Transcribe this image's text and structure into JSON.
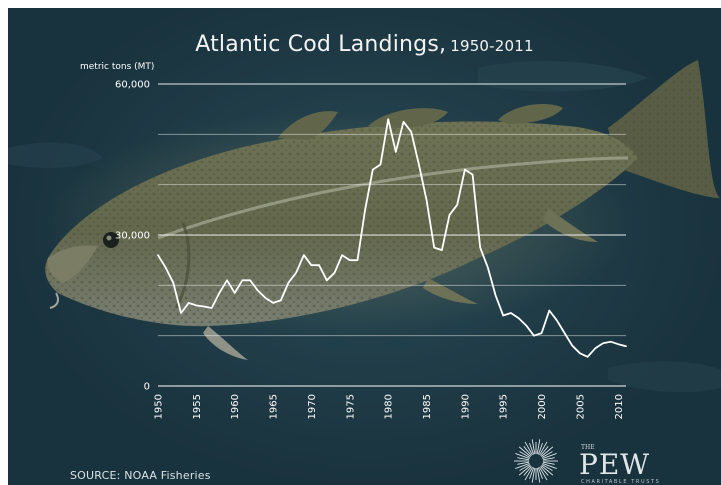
{
  "chart_data": {
    "type": "line",
    "title": "Atlantic Cod Landings,",
    "title_years": "1950-2011",
    "ylabel": "metric tons (MT)",
    "ylim": [
      0,
      60000
    ],
    "y_ticks": [
      {
        "value": 0,
        "label": "0"
      },
      {
        "value": 30000,
        "label": "30,000"
      },
      {
        "value": 60000,
        "label": "60,000"
      }
    ],
    "gridlines": [
      10000,
      20000,
      30000,
      40000,
      50000,
      60000
    ],
    "xlim": [
      1950,
      2011
    ],
    "x_ticks": [
      {
        "value": 1950,
        "label": "1950"
      },
      {
        "value": 1955,
        "label": "1955"
      },
      {
        "value": 1960,
        "label": "1960"
      },
      {
        "value": 1965,
        "label": "1965"
      },
      {
        "value": 1970,
        "label": "1970"
      },
      {
        "value": 1975,
        "label": "1975"
      },
      {
        "value": 1980,
        "label": "1980"
      },
      {
        "value": 1985,
        "label": "1985"
      },
      {
        "value": 1990,
        "label": "1990"
      },
      {
        "value": 1995,
        "label": "1995"
      },
      {
        "value": 2000,
        "label": "2000"
      },
      {
        "value": 2005,
        "label": "2005"
      },
      {
        "value": 2010,
        "label": "2010"
      }
    ],
    "grid": true,
    "series": [
      {
        "color": "#ffffff",
        "x": [
          1950,
          1951,
          1952,
          1953,
          1954,
          1955,
          1956,
          1957,
          1958,
          1959,
          1960,
          1961,
          1962,
          1963,
          1964,
          1965,
          1966,
          1967,
          1968,
          1969,
          1970,
          1971,
          1972,
          1973,
          1974,
          1975,
          1976,
          1977,
          1978,
          1979,
          1980,
          1981,
          1982,
          1983,
          1984,
          1985,
          1986,
          1987,
          1988,
          1989,
          1990,
          1991,
          1992,
          1993,
          1994,
          1995,
          1996,
          1997,
          1998,
          1999,
          2000,
          2001,
          2002,
          2003,
          2004,
          2005,
          2006,
          2007,
          2008,
          2009,
          2010,
          2011
        ],
        "values": [
          26000,
          23500,
          20500,
          14500,
          16500,
          16000,
          15800,
          15500,
          18500,
          21000,
          18500,
          21000,
          21000,
          19000,
          17500,
          16500,
          17000,
          20500,
          22500,
          26000,
          24000,
          24000,
          21000,
          22500,
          26000,
          25000,
          25000,
          35000,
          43000,
          44000,
          53000,
          46500,
          52500,
          50500,
          44000,
          37000,
          27500,
          27000,
          34000,
          36000,
          43000,
          42000,
          27500,
          23500,
          18000,
          14000,
          14500,
          13500,
          12000,
          10000,
          10500,
          15000,
          13000,
          10500,
          8000,
          6500,
          5800,
          7500,
          8500,
          8800,
          8300,
          7900
        ]
      }
    ]
  },
  "source": "SOURCE: NOAA Fisheries",
  "logo": {
    "the": "THE",
    "word": "PEW",
    "sub": "CHARITABLE TRUSTS"
  }
}
